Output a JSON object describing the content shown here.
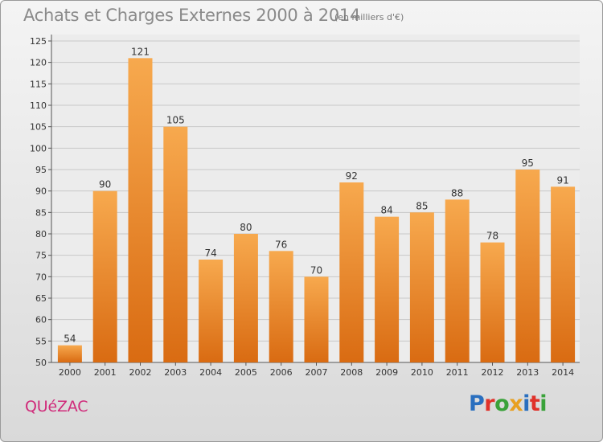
{
  "header": {
    "title": "Achats et Charges Externes 2000 à 2014",
    "unit_note": "(en milliers d'€)"
  },
  "footer": {
    "place": "QUéZAC",
    "logo_text": "Proxiti",
    "logo_letter_colors": [
      "#2a6fbf",
      "#e0322a",
      "#3aa23a",
      "#e8a020",
      "#2a6fbf",
      "#e0322a",
      "#3aa23a"
    ]
  },
  "colors": {
    "bar_top": "#f7a94e",
    "bar_bottom": "#d96b12",
    "grid": "#c8c8c8",
    "plot_bg": "#ececec",
    "place": "#d02a7a"
  },
  "chart_data": {
    "type": "bar",
    "title": "Achats et Charges Externes 2000 à 2014",
    "subtitle": "(en milliers d'€)",
    "xlabel": "",
    "ylabel": "",
    "categories": [
      "2000",
      "2001",
      "2002",
      "2003",
      "2004",
      "2005",
      "2006",
      "2007",
      "2008",
      "2009",
      "2010",
      "2011",
      "2012",
      "2013",
      "2014"
    ],
    "values": [
      54,
      90,
      121,
      105,
      74,
      80,
      76,
      70,
      92,
      84,
      85,
      88,
      78,
      95,
      91
    ],
    "data_labels": [
      "54",
      "90",
      "121",
      "105",
      "74",
      "80",
      "76",
      "70",
      "92",
      "84",
      "85",
      "88",
      "78",
      "95",
      "91"
    ],
    "ylim": [
      50,
      125
    ],
    "yticks": [
      50,
      55,
      60,
      65,
      70,
      75,
      80,
      85,
      90,
      95,
      100,
      105,
      110,
      115,
      120,
      125
    ],
    "grid": true,
    "legend": "none"
  }
}
